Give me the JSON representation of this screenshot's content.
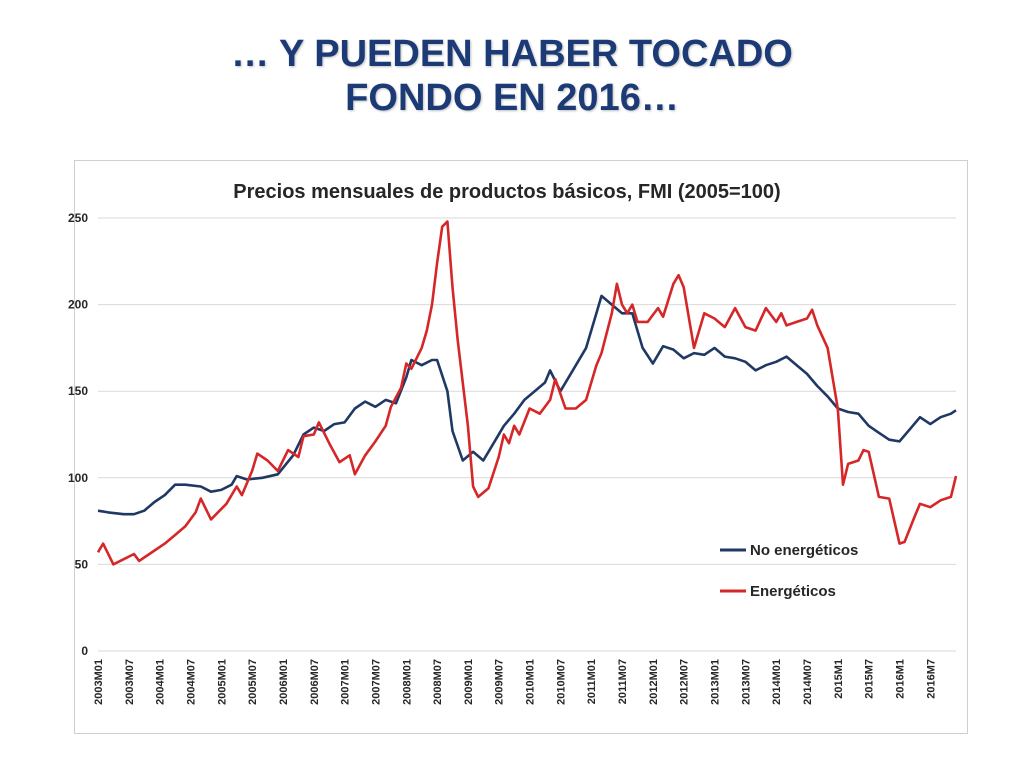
{
  "slide": {
    "title_line1": "… Y PUEDEN HABER TOCADO",
    "title_line2": "FONDO EN 2016…"
  },
  "colors": {
    "title": "#1c3a75",
    "no_energeticos": "#1f3864",
    "energeticos": "#d62728",
    "grid": "#d9d9d9"
  },
  "chart_data": {
    "type": "line",
    "title": "Precios mensuales de productos básicos, FMI (2005=100)",
    "ylim": [
      0,
      250
    ],
    "yticks": [
      0,
      50,
      100,
      150,
      200,
      250
    ],
    "grid": "horizontal",
    "legend_position": "lower-right",
    "x_start": "2003M01",
    "x_end": "2016M12",
    "xtick_labels": [
      "2003M01",
      "2003M07",
      "2004M01",
      "2004M07",
      "2005M01",
      "2005M07",
      "2006M01",
      "2006M07",
      "2007M01",
      "2007M07",
      "2008M01",
      "2008M07",
      "2009M01",
      "2009M07",
      "2010M01",
      "2010M07",
      "2011M01",
      "2011M07",
      "2012M01",
      "2012M07",
      "2013M01",
      "2013M07",
      "2014M01",
      "2014M07",
      "2015M1",
      "2015M7",
      "2016M1",
      "2016M7"
    ],
    "series": [
      {
        "name": "No energéticos",
        "color": "#1f3864",
        "anchors": [
          [
            "2003M01",
            81
          ],
          [
            "2003M03",
            80
          ],
          [
            "2003M06",
            79
          ],
          [
            "2003M08",
            79
          ],
          [
            "2003M10",
            81
          ],
          [
            "2003M12",
            86
          ],
          [
            "2004M02",
            90
          ],
          [
            "2004M04",
            96
          ],
          [
            "2004M06",
            96
          ],
          [
            "2004M09",
            95
          ],
          [
            "2004M11",
            92
          ],
          [
            "2005M01",
            93
          ],
          [
            "2005M03",
            96
          ],
          [
            "2005M04",
            101
          ],
          [
            "2005M06",
            99
          ],
          [
            "2005M09",
            100
          ],
          [
            "2005M12",
            102
          ],
          [
            "2006M03",
            113
          ],
          [
            "2006M05",
            125
          ],
          [
            "2006M07",
            129
          ],
          [
            "2006M09",
            127
          ],
          [
            "2006M11",
            131
          ],
          [
            "2007M01",
            132
          ],
          [
            "2007M03",
            140
          ],
          [
            "2007M05",
            144
          ],
          [
            "2007M07",
            141
          ],
          [
            "2007M09",
            145
          ],
          [
            "2007M11",
            143
          ],
          [
            "2008M01",
            158
          ],
          [
            "2008M02",
            168
          ],
          [
            "2008M04",
            165
          ],
          [
            "2008M06",
            168
          ],
          [
            "2008M07",
            168
          ],
          [
            "2008M09",
            150
          ],
          [
            "2008M10",
            127
          ],
          [
            "2008M12",
            110
          ],
          [
            "2009M02",
            115
          ],
          [
            "2009M04",
            110
          ],
          [
            "2009M06",
            120
          ],
          [
            "2009M08",
            130
          ],
          [
            "2009M10",
            137
          ],
          [
            "2009M12",
            145
          ],
          [
            "2010M02",
            150
          ],
          [
            "2010M04",
            155
          ],
          [
            "2010M05",
            162
          ],
          [
            "2010M07",
            150
          ],
          [
            "2010M09",
            160
          ],
          [
            "2010M12",
            175
          ],
          [
            "2011M02",
            195
          ],
          [
            "2011M03",
            205
          ],
          [
            "2011M05",
            200
          ],
          [
            "2011M07",
            195
          ],
          [
            "2011M09",
            195
          ],
          [
            "2011M11",
            175
          ],
          [
            "2012M01",
            166
          ],
          [
            "2012M03",
            176
          ],
          [
            "2012M05",
            174
          ],
          [
            "2012M07",
            169
          ],
          [
            "2012M09",
            172
          ],
          [
            "2012M11",
            171
          ],
          [
            "2013M01",
            175
          ],
          [
            "2013M03",
            170
          ],
          [
            "2013M05",
            169
          ],
          [
            "2013M07",
            167
          ],
          [
            "2013M09",
            162
          ],
          [
            "2013M11",
            165
          ],
          [
            "2014M01",
            167
          ],
          [
            "2014M03",
            170
          ],
          [
            "2014M05",
            165
          ],
          [
            "2014M07",
            160
          ],
          [
            "2014M09",
            153
          ],
          [
            "2014M11",
            147
          ],
          [
            "2015M01",
            140
          ],
          [
            "2015M03",
            138
          ],
          [
            "2015M05",
            137
          ],
          [
            "2015M07",
            130
          ],
          [
            "2015M09",
            126
          ],
          [
            "2015M11",
            122
          ],
          [
            "2016M01",
            121
          ],
          [
            "2016M03",
            128
          ],
          [
            "2016M05",
            135
          ],
          [
            "2016M07",
            131
          ],
          [
            "2016M09",
            135
          ],
          [
            "2016M11",
            137
          ],
          [
            "2016M12",
            139
          ]
        ]
      },
      {
        "name": "Energéticos",
        "color": "#d62728",
        "anchors": [
          [
            "2003M01",
            57
          ],
          [
            "2003M02",
            62
          ],
          [
            "2003M04",
            50
          ],
          [
            "2003M06",
            53
          ],
          [
            "2003M08",
            56
          ],
          [
            "2003M09",
            52
          ],
          [
            "2003M11",
            56
          ],
          [
            "2004M02",
            62
          ],
          [
            "2004M04",
            67
          ],
          [
            "2004M06",
            72
          ],
          [
            "2004M08",
            80
          ],
          [
            "2004M09",
            88
          ],
          [
            "2004M11",
            76
          ],
          [
            "2005M02",
            85
          ],
          [
            "2005M04",
            95
          ],
          [
            "2005M05",
            90
          ],
          [
            "2005M07",
            104
          ],
          [
            "2005M08",
            114
          ],
          [
            "2005M10",
            110
          ],
          [
            "2005M12",
            104
          ],
          [
            "2006M02",
            116
          ],
          [
            "2006M04",
            112
          ],
          [
            "2006M05",
            124
          ],
          [
            "2006M07",
            125
          ],
          [
            "2006M08",
            132
          ],
          [
            "2006M10",
            120
          ],
          [
            "2006M12",
            109
          ],
          [
            "2007M02",
            113
          ],
          [
            "2007M03",
            102
          ],
          [
            "2007M05",
            113
          ],
          [
            "2007M07",
            121
          ],
          [
            "2007M09",
            130
          ],
          [
            "2007M10",
            141
          ],
          [
            "2007M12",
            152
          ],
          [
            "2008M01",
            166
          ],
          [
            "2008M02",
            163
          ],
          [
            "2008M04",
            175
          ],
          [
            "2008M05",
            185
          ],
          [
            "2008M06",
            200
          ],
          [
            "2008M07",
            224
          ],
          [
            "2008M08",
            245
          ],
          [
            "2008M09",
            248
          ],
          [
            "2008M10",
            210
          ],
          [
            "2008M11",
            180
          ],
          [
            "2009M01",
            130
          ],
          [
            "2009M02",
            95
          ],
          [
            "2009M03",
            89
          ],
          [
            "2009M05",
            94
          ],
          [
            "2009M07",
            112
          ],
          [
            "2009M08",
            125
          ],
          [
            "2009M09",
            120
          ],
          [
            "2009M10",
            130
          ],
          [
            "2009M11",
            125
          ],
          [
            "2010M01",
            140
          ],
          [
            "2010M03",
            137
          ],
          [
            "2010M05",
            145
          ],
          [
            "2010M06",
            157
          ],
          [
            "2010M08",
            140
          ],
          [
            "2010M10",
            140
          ],
          [
            "2010M12",
            145
          ],
          [
            "2011M02",
            165
          ],
          [
            "2011M03",
            172
          ],
          [
            "2011M05",
            195
          ],
          [
            "2011M06",
            212
          ],
          [
            "2011M07",
            200
          ],
          [
            "2011M08",
            195
          ],
          [
            "2011M09",
            200
          ],
          [
            "2011M10",
            190
          ],
          [
            "2011M12",
            190
          ],
          [
            "2012M02",
            198
          ],
          [
            "2012M03",
            193
          ],
          [
            "2012M05",
            212
          ],
          [
            "2012M06",
            217
          ],
          [
            "2012M07",
            210
          ],
          [
            "2012M09",
            175
          ],
          [
            "2012M11",
            195
          ],
          [
            "2013M01",
            192
          ],
          [
            "2013M03",
            187
          ],
          [
            "2013M05",
            198
          ],
          [
            "2013M07",
            187
          ],
          [
            "2013M09",
            185
          ],
          [
            "2013M11",
            198
          ],
          [
            "2014M01",
            190
          ],
          [
            "2014M02",
            195
          ],
          [
            "2014M03",
            188
          ],
          [
            "2014M05",
            190
          ],
          [
            "2014M07",
            192
          ],
          [
            "2014M08",
            197
          ],
          [
            "2014M09",
            188
          ],
          [
            "2014M11",
            175
          ],
          [
            "2015M01",
            140
          ],
          [
            "2015M02",
            96
          ],
          [
            "2015M03",
            108
          ],
          [
            "2015M05",
            110
          ],
          [
            "2015M06",
            116
          ],
          [
            "2015M07",
            115
          ],
          [
            "2015M09",
            89
          ],
          [
            "2015M11",
            88
          ],
          [
            "2016M01",
            62
          ],
          [
            "2016M02",
            63
          ],
          [
            "2016M04",
            78
          ],
          [
            "2016M05",
            85
          ],
          [
            "2016M07",
            83
          ],
          [
            "2016M09",
            87
          ],
          [
            "2016M11",
            89
          ],
          [
            "2016M12",
            101
          ]
        ]
      }
    ]
  }
}
